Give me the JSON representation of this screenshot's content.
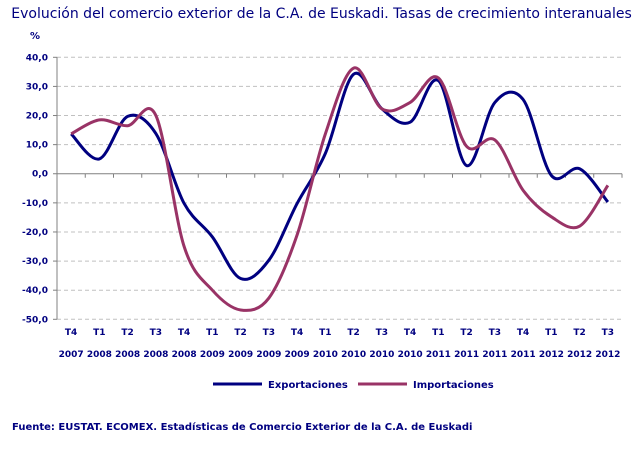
{
  "chart_data": {
    "type": "line",
    "title": "Evolución del comercio exterior de la C.A. de Euskadi. Tasas de crecimiento interanuales",
    "ylabel": "%",
    "ylim": [
      -50,
      40
    ],
    "yticks": [
      "40,0",
      "30,0",
      "20,0",
      "10,0",
      "0,0",
      "-10,0",
      "-20,0",
      "-30,0",
      "-40,0",
      "-50,0"
    ],
    "ytick_values": [
      40,
      30,
      20,
      10,
      0,
      -10,
      -20,
      -30,
      -40,
      -50
    ],
    "grid": true,
    "legend_position": "bottom",
    "categories": [
      [
        "T4",
        "2007"
      ],
      [
        "T1",
        "2008"
      ],
      [
        "T2",
        "2008"
      ],
      [
        "T3",
        "2008"
      ],
      [
        "T4",
        "2008"
      ],
      [
        "T1",
        "2009"
      ],
      [
        "T2",
        "2009"
      ],
      [
        "T3",
        "2009"
      ],
      [
        "T4",
        "2009"
      ],
      [
        "T1",
        "2010"
      ],
      [
        "T2",
        "2010"
      ],
      [
        "T3",
        "2010"
      ],
      [
        "T4",
        "2010"
      ],
      [
        "T1",
        "2011"
      ],
      [
        "T2",
        "2011"
      ],
      [
        "T3",
        "2011"
      ],
      [
        "T4",
        "2011"
      ],
      [
        "T1",
        "2012"
      ],
      [
        "T2",
        "2012"
      ],
      [
        "T3",
        "2012"
      ]
    ],
    "series": [
      {
        "name": "Exportaciones",
        "color": "#000080",
        "values": [
          13.7,
          5.1,
          19.7,
          13.8,
          -10.2,
          -21.7,
          -36.0,
          -29.7,
          -10.2,
          7.0,
          34.2,
          22.3,
          17.7,
          32.0,
          2.8,
          24.5,
          25.5,
          -0.6,
          1.7,
          -9.7
        ]
      },
      {
        "name": "Importaciones",
        "color": "#993366",
        "values": [
          13.7,
          18.5,
          16.5,
          20.0,
          -25.0,
          -40.0,
          -46.8,
          -42.7,
          -21.0,
          13.7,
          36.3,
          22.3,
          24.5,
          32.9,
          9.4,
          11.6,
          -5.7,
          -14.8,
          -18.0,
          -4.0
        ]
      }
    ]
  },
  "source": "Fuente: EUSTAT. ECOMEX. Estadísticas de Comercio Exterior de la C.A. de Euskadi"
}
